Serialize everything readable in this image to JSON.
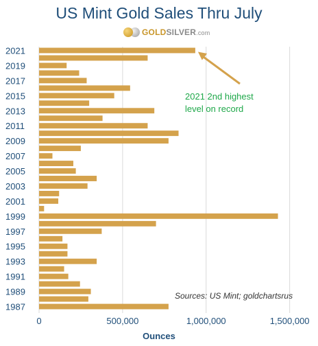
{
  "chart_data": {
    "type": "bar",
    "orientation": "horizontal",
    "title": "US Mint Gold Sales Thru July",
    "xlabel": "Ounces",
    "ylabel": "",
    "xlim": [
      0,
      1600000
    ],
    "x_ticks": [
      0,
      500000,
      1000000,
      1500000
    ],
    "x_tick_labels": [
      "0",
      "500,000",
      "1,000,000",
      "1,500,000"
    ],
    "grid": "vertical",
    "bar_color": "#d4a24c",
    "categories": [
      "2021",
      "2020",
      "2019",
      "2018",
      "2017",
      "2016",
      "2015",
      "2014",
      "2013",
      "2012",
      "2011",
      "2010",
      "2009",
      "2008",
      "2007",
      "2006",
      "2005",
      "2004",
      "2003",
      "2002",
      "2001",
      "2000",
      "1999",
      "1998",
      "1997",
      "1996",
      "1995",
      "1994",
      "1993",
      "1992",
      "1991",
      "1990",
      "1989",
      "1988",
      "1987"
    ],
    "category_labels": [
      "2021",
      "",
      "2019",
      "",
      "2017",
      "",
      "2015",
      "",
      "2013",
      "",
      "2011",
      "",
      "2009",
      "",
      "2007",
      "",
      "2005",
      "",
      "2003",
      "",
      "2001",
      "",
      "1999",
      "",
      "1997",
      "",
      "1995",
      "",
      "1993",
      "",
      "1991",
      "",
      "1989",
      "",
      "1987"
    ],
    "values": [
      935000,
      650000,
      165000,
      240000,
      285000,
      545000,
      450000,
      300000,
      690000,
      380000,
      650000,
      835000,
      775000,
      250000,
      80000,
      205000,
      220000,
      345000,
      290000,
      120000,
      115000,
      30000,
      1430000,
      700000,
      375000,
      140000,
      170000,
      170000,
      345000,
      150000,
      175000,
      245000,
      310000,
      295000,
      775000
    ]
  },
  "header": {
    "title": "US Mint Gold Sales Thru July",
    "logo": {
      "gold": "GOLD",
      "silver": "SILVER",
      "domain": ".com"
    }
  },
  "annotation": {
    "line1": "2021 2nd highest",
    "line2": "level on record",
    "color": "#1fa84a"
  },
  "source": "Sources: US Mint; goldchartsrus",
  "colors": {
    "title": "#1f4e79",
    "axis_text": "#1f4e79",
    "arrow": "#d4a24c",
    "grid": "#d9d9d9"
  }
}
